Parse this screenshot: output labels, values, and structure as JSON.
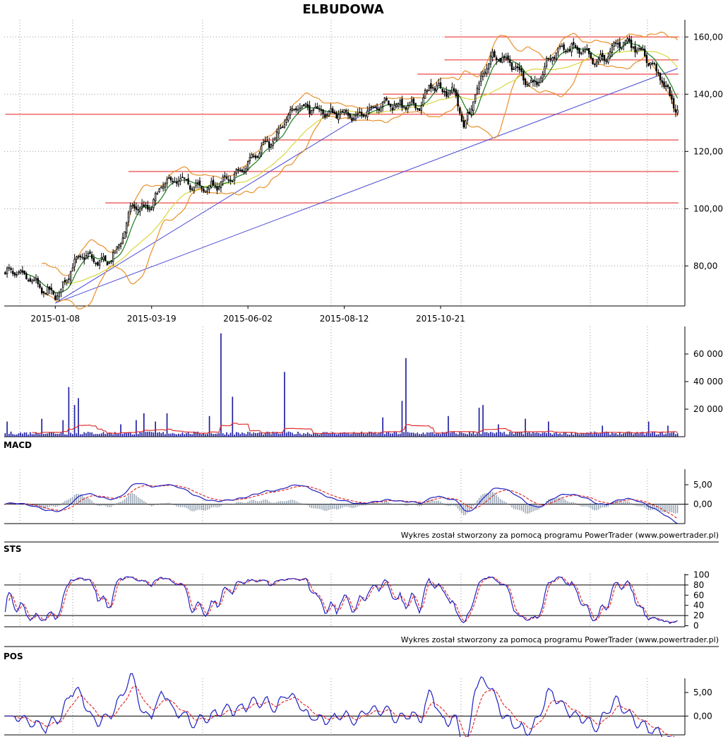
{
  "title": "ELBUDOWA",
  "credit": "Wykres został stworzony za pomocą programu PowerTrader (www.powertrader.pl)",
  "colors": {
    "candle": "#000000",
    "bollinger": "#e8902a",
    "ma_short": "#1a7a1a",
    "ma_long": "#d8d840",
    "trendline": "#4a4ad8",
    "sr_lines": "#f07070",
    "volume_bar": "#1a1aa0",
    "volume_ma": "#e03030",
    "osc_main": "#2020c0",
    "osc_signal": "#e03030",
    "histogram": "#90a0b0"
  },
  "chart_data": [
    {
      "type": "candlestick",
      "panel": "price",
      "title": "ELBUDOWA",
      "x_tick_labels": [
        "2015-01-08",
        "2015-03-19",
        "2015-06-02",
        "2015-08-12",
        "2015-10-21"
      ],
      "y_ticks": [
        80,
        100,
        120,
        140,
        160
      ],
      "y_tick_labels": [
        "80,00",
        "100,00",
        "120,00",
        "140,00",
        "160,00"
      ],
      "ylim": [
        66,
        166
      ],
      "close_keypoints": [
        [
          0,
          78
        ],
        [
          8,
          77
        ],
        [
          14,
          75
        ],
        [
          20,
          71
        ],
        [
          28,
          70
        ],
        [
          34,
          79
        ],
        [
          40,
          84
        ],
        [
          46,
          82
        ],
        [
          52,
          81
        ],
        [
          58,
          85
        ],
        [
          62,
          93
        ],
        [
          66,
          101
        ],
        [
          72,
          100
        ],
        [
          76,
          101
        ],
        [
          82,
          109
        ],
        [
          90,
          110
        ],
        [
          98,
          108
        ],
        [
          104,
          107
        ],
        [
          112,
          109
        ],
        [
          118,
          111
        ],
        [
          124,
          114
        ],
        [
          128,
          118
        ],
        [
          134,
          122
        ],
        [
          140,
          124
        ],
        [
          144,
          129
        ],
        [
          148,
          134
        ],
        [
          152,
          136
        ],
        [
          158,
          135
        ],
        [
          164,
          134
        ],
        [
          170,
          133
        ],
        [
          176,
          134
        ],
        [
          180,
          132
        ],
        [
          186,
          133
        ],
        [
          190,
          135
        ],
        [
          196,
          137
        ],
        [
          204,
          136
        ],
        [
          210,
          136
        ],
        [
          216,
          136
        ],
        [
          220,
          143
        ],
        [
          226,
          142
        ],
        [
          234,
          140
        ],
        [
          238,
          128
        ],
        [
          242,
          136
        ],
        [
          248,
          147
        ],
        [
          252,
          153
        ],
        [
          258,
          153
        ],
        [
          264,
          150
        ],
        [
          270,
          145
        ],
        [
          276,
          143
        ],
        [
          282,
          152
        ],
        [
          288,
          156
        ],
        [
          294,
          156
        ],
        [
          300,
          155
        ],
        [
          306,
          151
        ],
        [
          312,
          153
        ],
        [
          318,
          158
        ],
        [
          324,
          158
        ],
        [
          330,
          155
        ],
        [
          336,
          150
        ],
        [
          340,
          146
        ],
        [
          346,
          138
        ],
        [
          349,
          134
        ]
      ],
      "series": [
        {
          "name": "",
          "kind": "close",
          "length": 350
        },
        {
          "name": "",
          "kind": "moving-average",
          "window": 8
        },
        {
          "name": "",
          "kind": "moving-average",
          "window": 30
        },
        {
          "name": "",
          "kind": "bollinger-bands",
          "window": 20,
          "k": 2
        }
      ],
      "horizontal_levels": [
        {
          "value": 160,
          "from_index": 228
        },
        {
          "value": 152,
          "from_index": 228
        },
        {
          "value": 147,
          "from_index": 214
        },
        {
          "value": 140,
          "from_index": 196
        },
        {
          "value": 133,
          "from_index": 0
        },
        {
          "value": 124,
          "from_index": 116
        },
        {
          "value": 113,
          "from_index": 64
        },
        {
          "value": 102,
          "from_index": 52
        }
      ],
      "trendlines": [
        {
          "from": [
            26,
            67
          ],
          "to": [
            198,
            138
          ]
        },
        {
          "from": [
            26,
            67
          ],
          "to": [
            349,
            149
          ]
        }
      ]
    },
    {
      "type": "bar",
      "panel": "volume",
      "y_ticks": [
        20000,
        40000,
        60000
      ],
      "y_tick_labels": [
        "20 000",
        "40 000",
        "60 000"
      ],
      "ylim": [
        0,
        80000
      ],
      "base_level": 2500,
      "spikes": [
        [
          1,
          11000
        ],
        [
          19,
          13000
        ],
        [
          30,
          12000
        ],
        [
          33,
          36000
        ],
        [
          36,
          23000
        ],
        [
          38,
          28000
        ],
        [
          60,
          9000
        ],
        [
          68,
          12000
        ],
        [
          72,
          17000
        ],
        [
          78,
          11000
        ],
        [
          84,
          17000
        ],
        [
          106,
          15000
        ],
        [
          112,
          75000
        ],
        [
          118,
          29000
        ],
        [
          145,
          47000
        ],
        [
          196,
          14000
        ],
        [
          206,
          26000
        ],
        [
          208,
          57000
        ],
        [
          230,
          15000
        ],
        [
          246,
          21000
        ],
        [
          248,
          23000
        ],
        [
          256,
          9000
        ],
        [
          270,
          13000
        ],
        [
          282,
          11000
        ],
        [
          310,
          8000
        ],
        [
          334,
          11000
        ],
        [
          344,
          8000
        ]
      ],
      "series": [
        {
          "name": "",
          "kind": "volume"
        },
        {
          "name": "",
          "kind": "volume-moving-average",
          "window": 15
        }
      ]
    },
    {
      "type": "line",
      "panel": "oscillator",
      "title": "MACD",
      "y_ticks": [
        0,
        5
      ],
      "y_tick_labels": [
        "0,00",
        "5,00"
      ],
      "ylim": [
        -5,
        9
      ],
      "histogram": true,
      "series": [
        {
          "name": "",
          "kind": "macd",
          "fast": 12,
          "slow": 26
        },
        {
          "name": "",
          "kind": "signal",
          "window": 9,
          "dashed": true
        }
      ]
    },
    {
      "type": "line",
      "panel": "oscillator",
      "title": "STS",
      "y_ticks": [
        0,
        20,
        40,
        60,
        80,
        100
      ],
      "y_tick_labels": [
        "0",
        "20",
        "40",
        "60",
        "80",
        "100"
      ],
      "ylim": [
        -2,
        102
      ],
      "reference_lines": [
        20,
        80
      ],
      "series": [
        {
          "name": "",
          "kind": "stochastic",
          "window": 14
        },
        {
          "name": "",
          "kind": "stochastic-signal",
          "window": 3,
          "dashed": true
        }
      ]
    },
    {
      "type": "line",
      "panel": "oscillator",
      "title": "POS",
      "y_ticks": [
        0,
        5
      ],
      "y_tick_labels": [
        "0,00",
        "5,00"
      ],
      "ylim": [
        -4,
        8
      ],
      "reference_lines": [
        0
      ],
      "series": [
        {
          "name": "",
          "kind": "price-oscillator",
          "window": 10
        },
        {
          "name": "",
          "kind": "signal",
          "window": 9,
          "dashed": true
        }
      ]
    }
  ]
}
